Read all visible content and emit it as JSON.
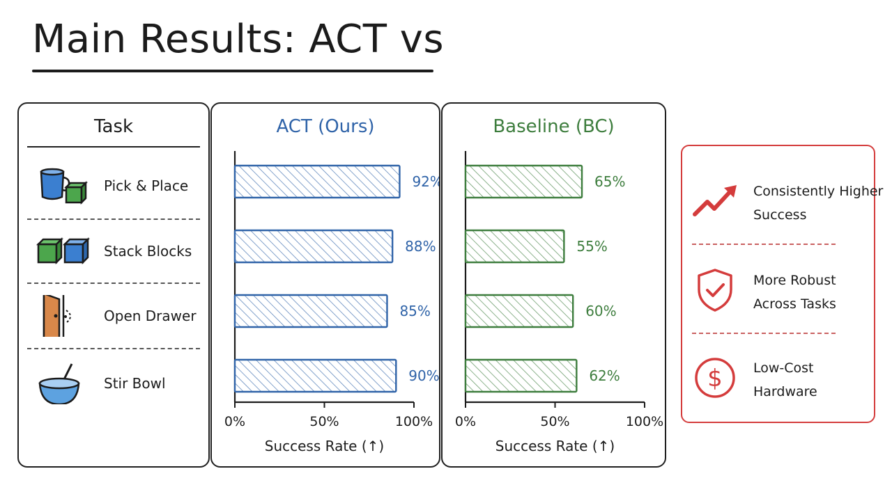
{
  "title": "Main Results: ACT vs",
  "task_panel": {
    "heading": "Task",
    "tasks": [
      {
        "label": "Pick & Place",
        "icon": "cup-and-cube-icon"
      },
      {
        "label": "Stack Blocks",
        "icon": "stacked-blocks-icon"
      },
      {
        "label": "Open Drawer",
        "icon": "door-icon"
      },
      {
        "label": "Stir Bowl",
        "icon": "bowl-whisk-icon"
      }
    ]
  },
  "chart_data": [
    {
      "type": "bar",
      "orientation": "horizontal",
      "title": "ACT (Ours)",
      "categories": [
        "Pick & Place",
        "Stack Blocks",
        "Open Drawer",
        "Stir Bowl"
      ],
      "values": [
        92,
        88,
        85,
        90
      ],
      "value_labels": [
        "92%",
        "88%",
        "85%",
        "90%"
      ],
      "xlabel": "Success Rate (↑)",
      "xlim": [
        0,
        100
      ],
      "xticks": [
        "0%",
        "50%",
        "100%"
      ],
      "color": "#2f63a8",
      "fill": "hatched"
    },
    {
      "type": "bar",
      "orientation": "horizontal",
      "title": "Baseline (BC)",
      "categories": [
        "Pick & Place",
        "Stack Blocks",
        "Open Drawer",
        "Stir Bowl"
      ],
      "values": [
        65,
        55,
        60,
        62
      ],
      "value_labels": [
        "65%",
        "55%",
        "60%",
        "62%"
      ],
      "xlabel": "Success Rate (↑)",
      "xlim": [
        0,
        100
      ],
      "xticks": [
        "0%",
        "50%",
        "100%"
      ],
      "color": "#3d7d3d",
      "fill": "hatched"
    }
  ],
  "advantages": [
    {
      "line1": "Consistently Higher",
      "line2": "Success",
      "icon": "trend-up-arrow-icon"
    },
    {
      "line1": "More Robust",
      "line2": "Across Tasks",
      "icon": "shield-check-icon"
    },
    {
      "line1": "Low-Cost",
      "line2": "Hardware",
      "icon": "dollar-coin-icon"
    }
  ],
  "colors": {
    "act": "#2f63a8",
    "baseline": "#3d7d3d",
    "accent": "#d43c3c",
    "ink": "#1b1b1b"
  }
}
